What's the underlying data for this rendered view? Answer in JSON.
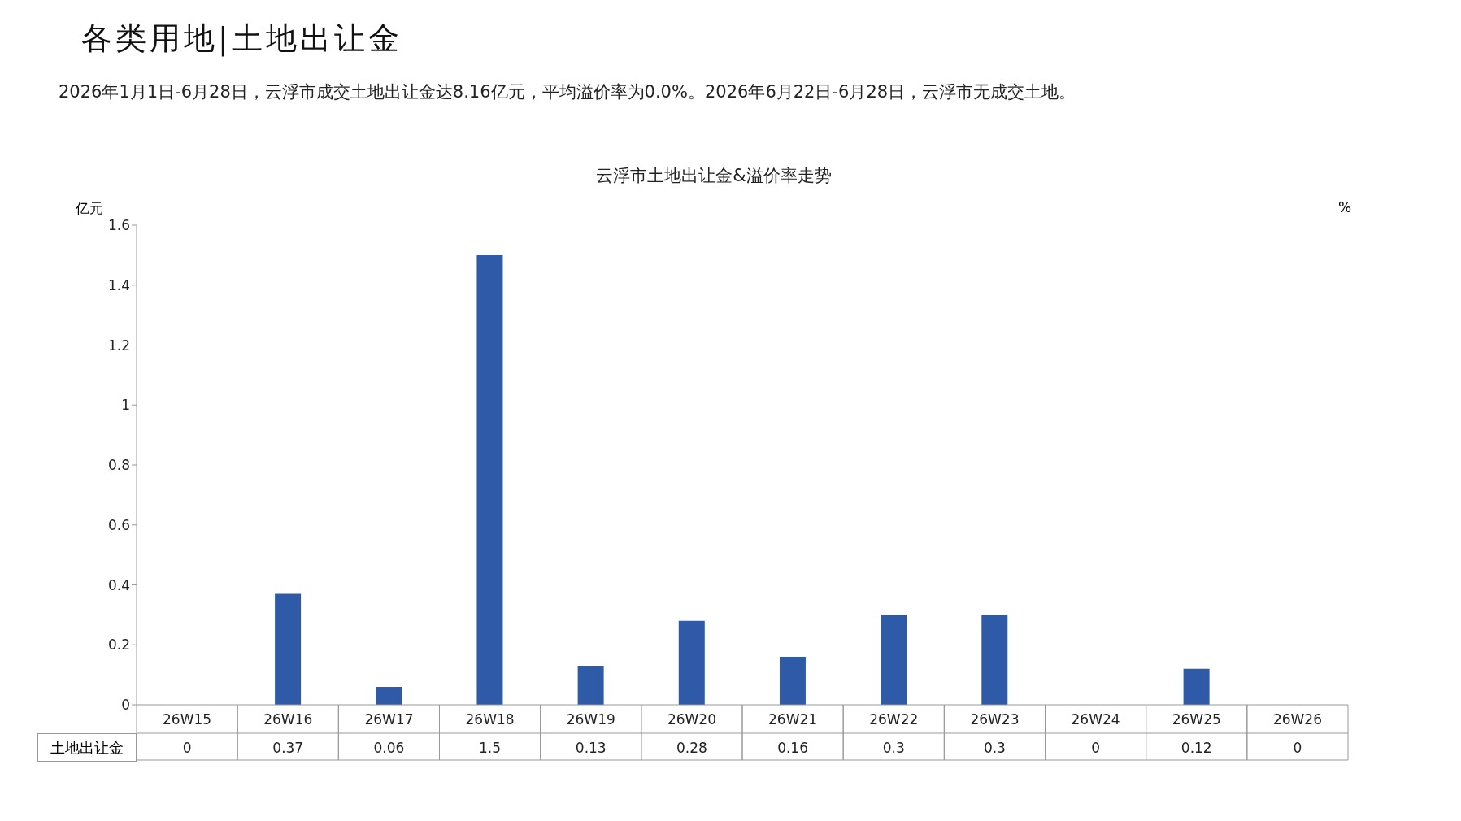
{
  "chart_data": {
    "type": "bar",
    "title": "各类用地|土地出让金",
    "subtitle": "2026年1月1日-6月28日，云浮市成交土地出让金达8.16亿元，平均溢价率为0.0%。2026年6月22日-6月28日，云浮市无成交土地。",
    "annotations": [
      "云浮市土地出让金&溢价率走势"
    ],
    "ylabel": "亿元",
    "y2label": "%",
    "categories": [
      "26W15",
      "26W16",
      "26W17",
      "26W18",
      "26W19",
      "26W20",
      "26W21",
      "26W22",
      "26W23",
      "26W24",
      "26W25",
      "26W26"
    ],
    "series": [
      {
        "name": "土地出让金",
        "color": "#2e5aa8",
        "values": [
          0,
          0.37,
          0.06,
          1.5,
          0.13,
          0.28,
          0.16,
          0.3,
          0.3,
          0,
          0.12,
          0
        ]
      }
    ],
    "ylim": [
      0,
      1.6
    ],
    "yticks": [
      0,
      0.2,
      0.4,
      0.6,
      0.8,
      1,
      1.2,
      1.4,
      1.6
    ],
    "data_labels": true
  }
}
